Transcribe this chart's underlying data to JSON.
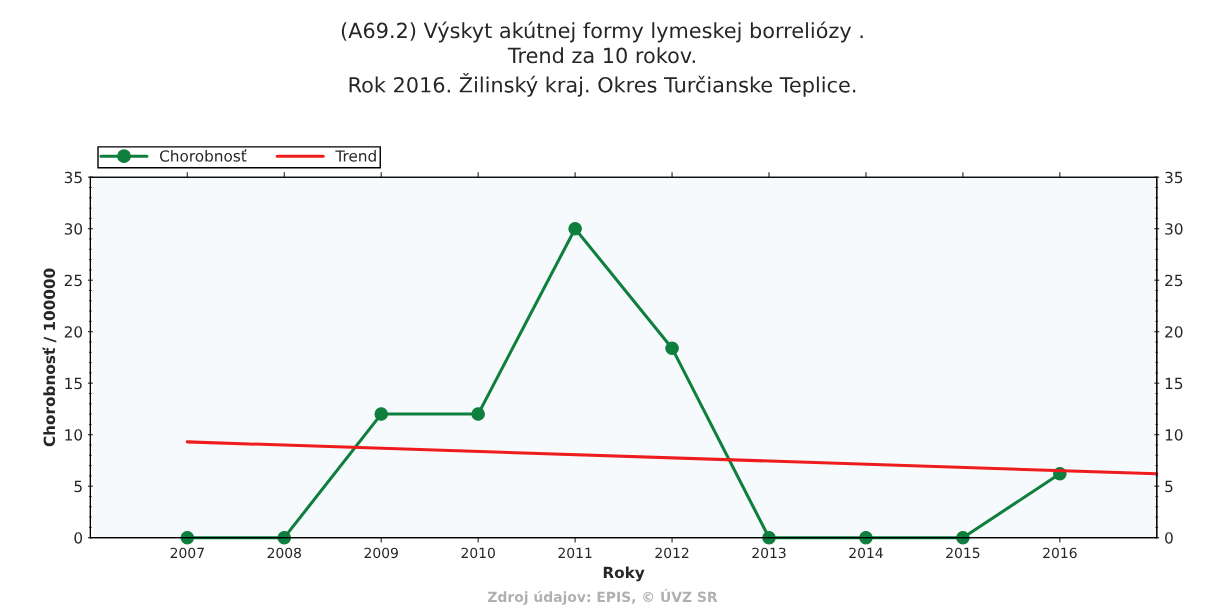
{
  "chart_data": {
    "type": "line",
    "title": "(A69.2) Výskyt akútnej formy lymeskej borreliózy .\nTrend za 10 rokov.\nRok 2016. Žilinský kraj. Okres Turčianske Teplice.",
    "xlabel": "Roky",
    "ylabel": "Chorobnosť / 100000",
    "x": [
      2007,
      2008,
      2009,
      2010,
      2011,
      2012,
      2013,
      2014,
      2015,
      2016
    ],
    "series": [
      {
        "name": "Chorobnosť",
        "color": "#0e7f3c",
        "marker": "circle",
        "values": [
          0,
          0,
          12,
          12,
          30,
          18.4,
          0,
          0,
          0,
          6.2
        ]
      },
      {
        "name": "Trend",
        "color": "#ee1c1c",
        "marker": "none",
        "x": [
          2007,
          2017
        ],
        "values": [
          9.3,
          6.2
        ]
      }
    ],
    "xlim": [
      2006,
      2017
    ],
    "xticks": [
      2007,
      2008,
      2009,
      2010,
      2011,
      2012,
      2013,
      2014,
      2015,
      2016
    ],
    "ylim": [
      0,
      35
    ],
    "yticks": [
      0,
      5,
      10,
      15,
      20,
      25,
      30,
      35
    ],
    "y2lim": [
      0,
      35
    ],
    "y2ticks": [
      0,
      5,
      10,
      15,
      20,
      25,
      30,
      35
    ],
    "grid": false,
    "legend": "top left",
    "annotations": [
      "Zdroj údajov: EPIS, © ÚVZ SR"
    ]
  }
}
